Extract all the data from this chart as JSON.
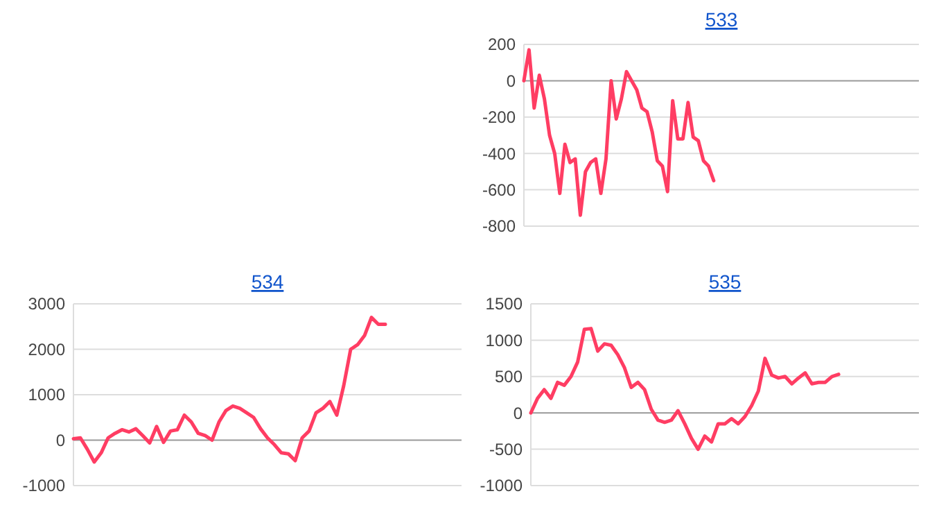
{
  "chart_data": [
    {
      "type": "line",
      "title": "533",
      "categories": [
        null,
        null,
        null,
        null,
        null,
        null,
        null,
        null,
        null,
        null,
        null,
        null,
        null,
        null,
        null,
        null,
        null,
        null,
        null,
        null,
        null,
        null,
        null,
        null,
        null,
        null,
        null,
        null,
        null,
        null,
        null,
        null,
        null,
        null,
        null,
        null,
        null,
        null,
        null,
        null,
        null,
        null,
        null,
        null,
        null,
        null,
        null,
        null,
        null,
        null,
        null,
        null,
        null,
        null,
        null,
        null,
        null,
        null,
        null,
        null,
        null,
        null,
        null,
        null,
        null,
        null,
        null,
        null,
        null,
        null,
        null,
        null,
        null,
        null,
        null,
        null,
        null,
        null
      ],
      "series": [
        {
          "color": "#ff3d63",
          "values": [
            0,
            170,
            -150,
            30,
            -100,
            -300,
            -400,
            -620,
            -350,
            -450,
            -430,
            -740,
            -500,
            -450,
            -430,
            -620,
            -430,
            0,
            -210,
            -100,
            50,
            0,
            -50,
            -150,
            -170,
            -280,
            -440,
            -470,
            -610,
            -110,
            -320,
            -320,
            -120,
            -310,
            -330,
            -440,
            -470,
            -550,
            null,
            null,
            null,
            null,
            null,
            null,
            null,
            null,
            null,
            null,
            null,
            null,
            null,
            null,
            null,
            null,
            null,
            null,
            null,
            null,
            null,
            null,
            null,
            null,
            null,
            null,
            null,
            null,
            null,
            null,
            null,
            null,
            null,
            null,
            null,
            null,
            null,
            null,
            null,
            null
          ]
        }
      ],
      "ylim": [
        -800,
        200
      ],
      "yticks": [
        -800,
        -600,
        -400,
        -200,
        0,
        200
      ],
      "grid": "y",
      "tick_labels": "y",
      "marker": "none",
      "line_style": "solid"
    },
    {
      "type": "line",
      "title": "534",
      "categories": [
        null,
        null,
        null,
        null,
        null,
        null,
        null,
        null,
        null,
        null,
        null,
        null,
        null,
        null,
        null,
        null,
        null,
        null,
        null,
        null,
        null,
        null,
        null,
        null,
        null,
        null,
        null,
        null,
        null,
        null,
        null,
        null,
        null,
        null,
        null,
        null,
        null,
        null,
        null,
        null,
        null,
        null,
        null,
        null,
        null,
        null,
        null,
        null,
        null,
        null,
        null,
        null,
        null,
        null,
        null,
        null,
        null
      ],
      "series": [
        {
          "color": "#ff3d63",
          "values": [
            30,
            50,
            -200,
            -480,
            -280,
            50,
            150,
            230,
            180,
            250,
            100,
            -60,
            300,
            -50,
            200,
            230,
            550,
            400,
            150,
            100,
            0,
            400,
            650,
            750,
            700,
            600,
            500,
            250,
            50,
            -100,
            -280,
            -300,
            -450,
            50,
            200,
            600,
            700,
            850,
            550,
            1200,
            2000,
            2100,
            2300,
            2700,
            2550,
            2550,
            null,
            null,
            null,
            null,
            null,
            null,
            null,
            null,
            null,
            null,
            null
          ]
        }
      ],
      "ylim": [
        -1000,
        3000
      ],
      "yticks": [
        -1000,
        0,
        1000,
        2000,
        3000
      ],
      "grid": "y",
      "tick_labels": "y",
      "marker": "none",
      "line_style": "solid"
    },
    {
      "type": "line",
      "title": "535",
      "categories": [
        null,
        null,
        null,
        null,
        null,
        null,
        null,
        null,
        null,
        null,
        null,
        null,
        null,
        null,
        null,
        null,
        null,
        null,
        null,
        null,
        null,
        null,
        null,
        null,
        null,
        null,
        null,
        null,
        null,
        null,
        null,
        null,
        null,
        null,
        null,
        null,
        null,
        null,
        null,
        null,
        null,
        null,
        null,
        null,
        null,
        null,
        null,
        null,
        null,
        null,
        null,
        null,
        null,
        null,
        null,
        null,
        null,
        null,
        null
      ],
      "series": [
        {
          "color": "#ff3d63",
          "values": [
            0,
            200,
            320,
            200,
            420,
            380,
            500,
            700,
            1150,
            1160,
            850,
            950,
            930,
            800,
            620,
            350,
            420,
            320,
            50,
            -100,
            -130,
            -100,
            30,
            -150,
            -350,
            -500,
            -320,
            -400,
            -150,
            -150,
            -80,
            -150,
            -50,
            100,
            300,
            750,
            520,
            480,
            500,
            400,
            480,
            550,
            400,
            420,
            420,
            500,
            530,
            null,
            null,
            null,
            null,
            null,
            null,
            null,
            null,
            null,
            null,
            null,
            null
          ]
        }
      ],
      "ylim": [
        -1000,
        1500
      ],
      "yticks": [
        -1000,
        -500,
        0,
        500,
        1000,
        1500
      ],
      "grid": "y",
      "tick_labels": "y",
      "marker": "none",
      "line_style": "solid"
    }
  ]
}
